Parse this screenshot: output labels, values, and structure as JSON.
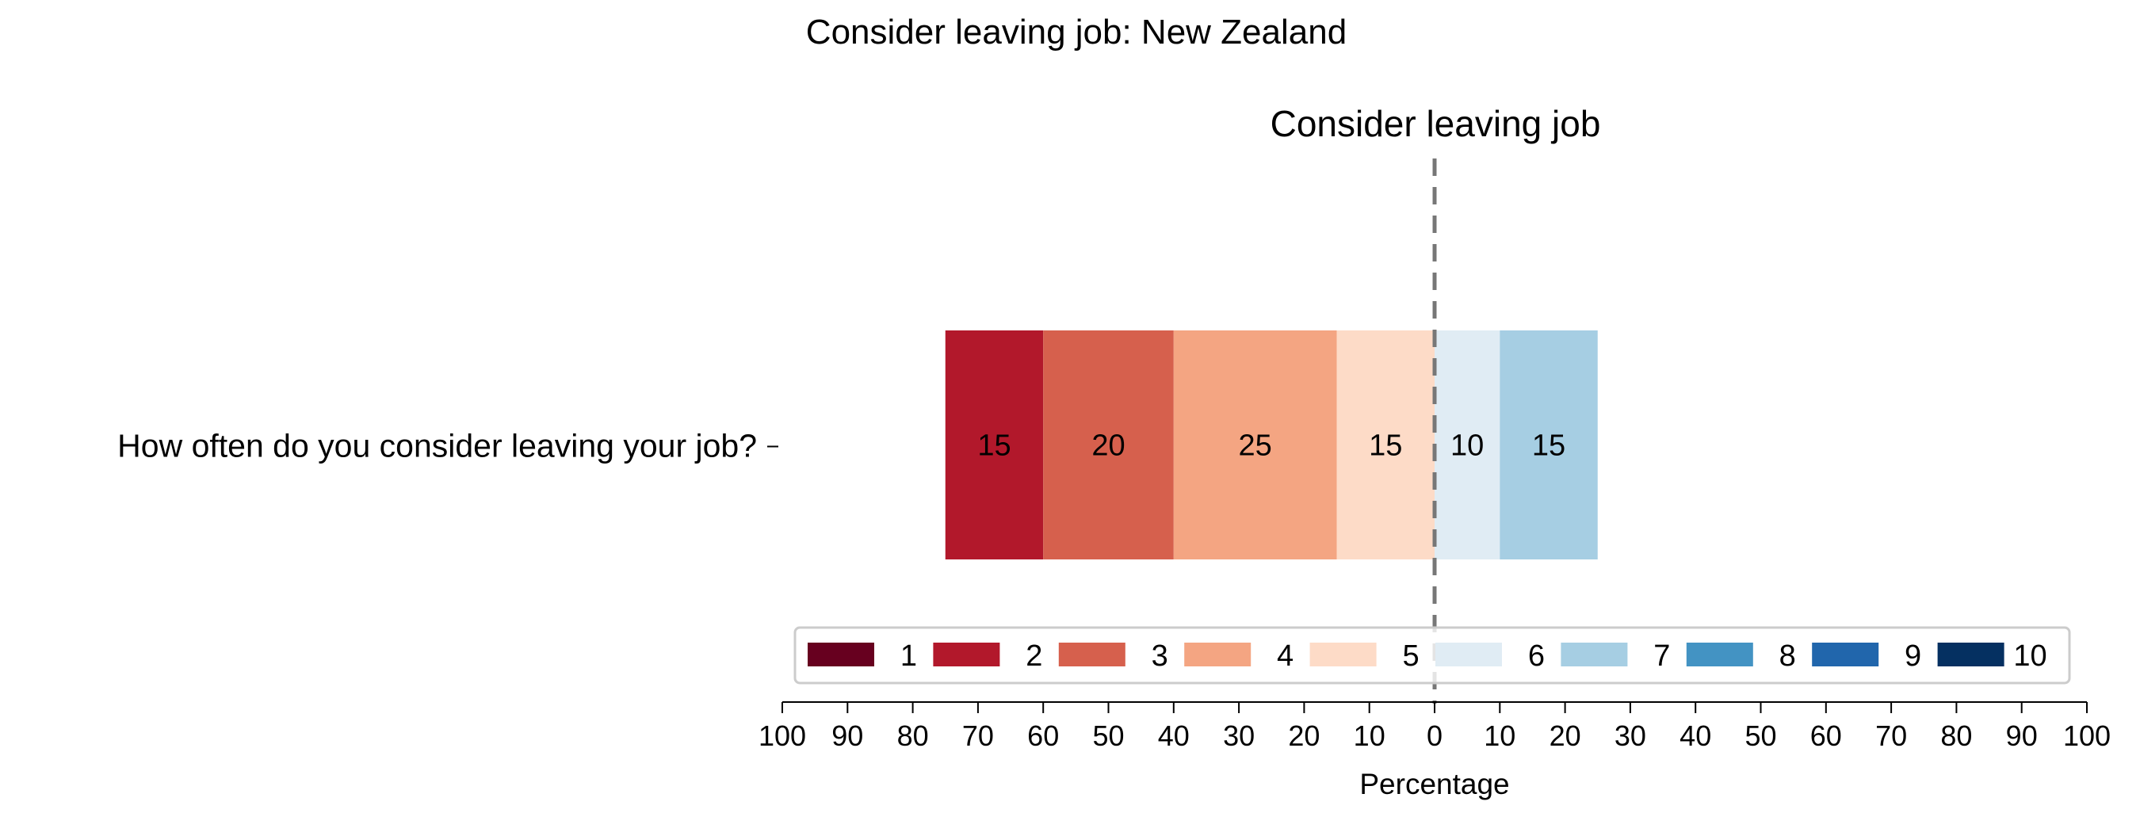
{
  "chart_data": {
    "type": "bar",
    "orientation": "horizontal-diverging",
    "title": "Consider leaving job: New Zealand",
    "subtitle": "Consider leaving job",
    "xlabel": "Percentage",
    "categories": [
      "How often do you consider leaving your job?"
    ],
    "xlim": [
      -100,
      100
    ],
    "x_ticks": [
      -100,
      -90,
      -80,
      -70,
      -60,
      -50,
      -40,
      -30,
      -20,
      -10,
      0,
      10,
      20,
      30,
      40,
      50,
      60,
      70,
      80,
      90,
      100
    ],
    "x_tick_labels": [
      "100",
      "90",
      "80",
      "70",
      "60",
      "50",
      "40",
      "30",
      "20",
      "10",
      "0",
      "10",
      "20",
      "30",
      "40",
      "50",
      "60",
      "70",
      "80",
      "90",
      "100"
    ],
    "zero_line": "dashed",
    "series": [
      {
        "name": "1",
        "values": [
          0
        ],
        "side": "negative",
        "color": "#67001f"
      },
      {
        "name": "2",
        "values": [
          15
        ],
        "side": "negative",
        "color": "#b2182b"
      },
      {
        "name": "3",
        "values": [
          20
        ],
        "side": "negative",
        "color": "#d6604d"
      },
      {
        "name": "4",
        "values": [
          25
        ],
        "side": "negative",
        "color": "#f4a582"
      },
      {
        "name": "5",
        "values": [
          15
        ],
        "side": "negative",
        "color": "#fddbc7"
      },
      {
        "name": "6",
        "values": [
          10
        ],
        "side": "positive",
        "color": "#e0ecf4"
      },
      {
        "name": "7",
        "values": [
          15
        ],
        "side": "positive",
        "color": "#a6cee3"
      },
      {
        "name": "8",
        "values": [
          0
        ],
        "side": "positive",
        "color": "#4393c3"
      },
      {
        "name": "9",
        "values": [
          0
        ],
        "side": "positive",
        "color": "#2166ac"
      },
      {
        "name": "10",
        "values": [
          0
        ],
        "side": "positive",
        "color": "#053061"
      }
    ],
    "legend": {
      "position": "bottom-center",
      "ncol": 10
    },
    "grid": false
  }
}
